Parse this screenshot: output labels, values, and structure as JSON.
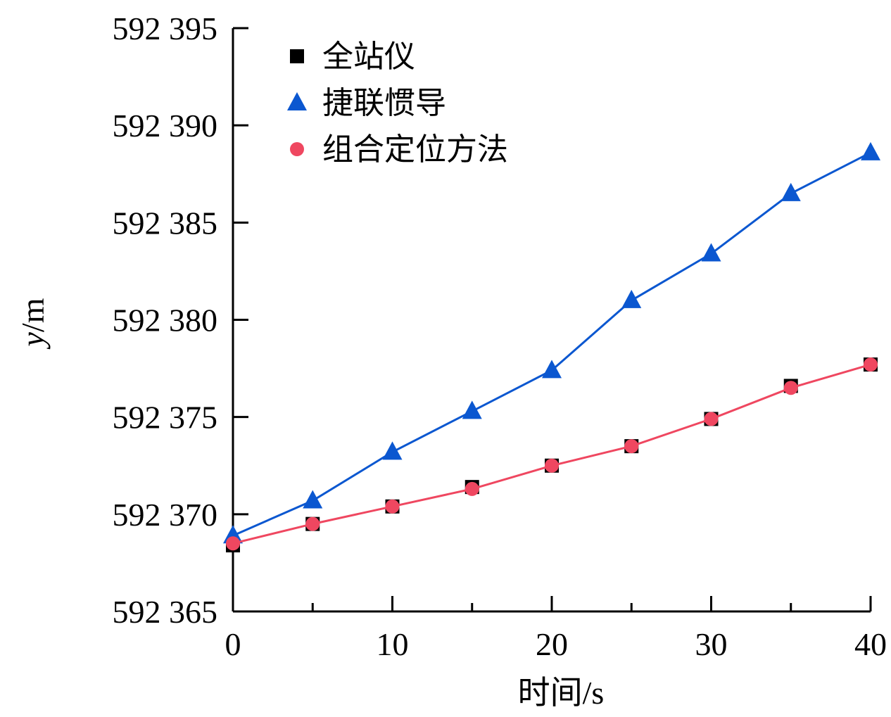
{
  "chart_data": {
    "type": "line",
    "xlabel": "时间/s",
    "ylabel": "y/m",
    "ylabel_var": "y",
    "ylabel_unit": "/m",
    "xlim": [
      0,
      40
    ],
    "ylim": [
      592365,
      592395
    ],
    "xticks": [
      0,
      10,
      20,
      30,
      40
    ],
    "xticks_minor": [
      5,
      15,
      25,
      35
    ],
    "yticks": [
      592365,
      592370,
      592375,
      592380,
      592385,
      592390,
      592395
    ],
    "ytick_labels": [
      "592 365",
      "592 370",
      "592 375",
      "592 380",
      "592 385",
      "592 390",
      "592 395"
    ],
    "xtick_labels": [
      "0",
      "10",
      "20",
      "30",
      "40"
    ],
    "grid": false,
    "legend_position": "top-left",
    "x": [
      0,
      5,
      10,
      15,
      20,
      25,
      30,
      35,
      40
    ],
    "series": [
      {
        "name": "全站仪",
        "marker": "square",
        "color": "#000000",
        "line": false,
        "values": [
          592368.4,
          592369.5,
          592370.4,
          592371.4,
          592372.5,
          592373.5,
          592374.9,
          592376.6,
          592377.7
        ]
      },
      {
        "name": "捷联惯导",
        "marker": "triangle",
        "color": "#0b57d0",
        "line": true,
        "values": [
          592368.9,
          592370.7,
          592373.2,
          592375.3,
          592377.4,
          592381.0,
          592383.4,
          592386.5,
          592388.6
        ]
      },
      {
        "name": "组合定位方法",
        "marker": "circle",
        "color": "#ef4760",
        "line": true,
        "values": [
          592368.5,
          592369.5,
          592370.4,
          592371.3,
          592372.5,
          592373.5,
          592374.9,
          592376.5,
          592377.7
        ]
      }
    ]
  }
}
